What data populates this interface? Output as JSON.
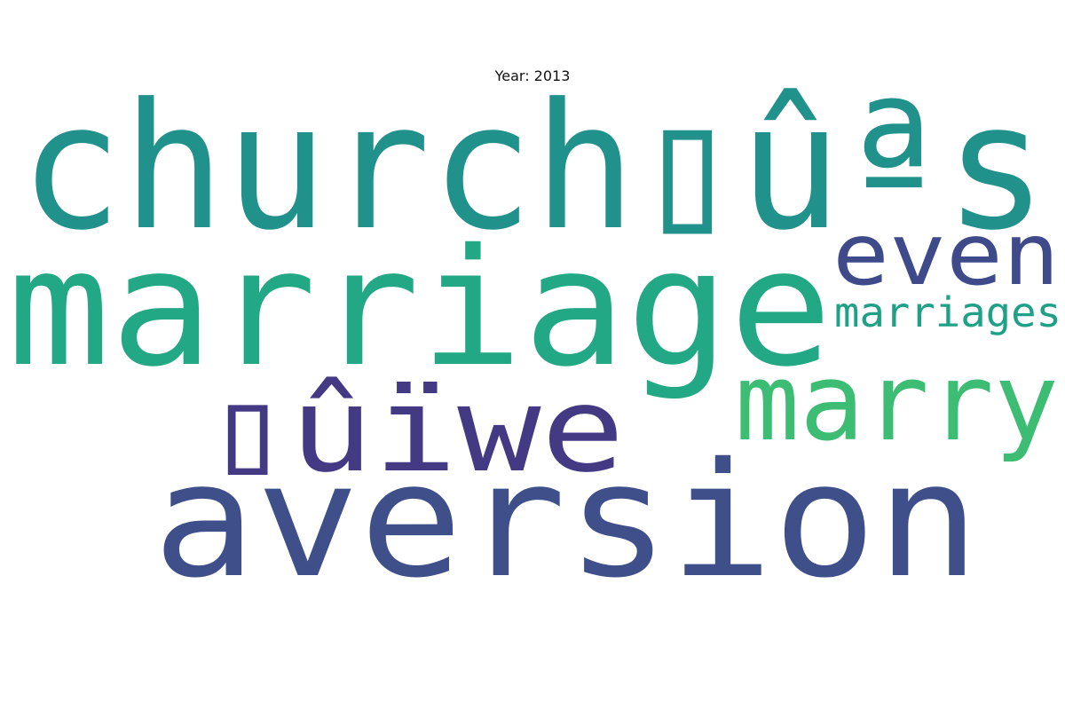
{
  "title": "Year: 2013",
  "words": [
    {
      "text": "church▯ûªs",
      "color": "#21918c"
    },
    {
      "text": "marriage",
      "color": "#22a884"
    },
    {
      "text": "even",
      "color": "#3e4a89"
    },
    {
      "text": "marriages",
      "color": "#1fa187"
    },
    {
      "text": "marry",
      "color": "#3dbc74"
    },
    {
      "text": "▯ûïwe",
      "color": "#443983"
    },
    {
      "text": "aversion",
      "color": "#3f4f8a"
    }
  ]
}
